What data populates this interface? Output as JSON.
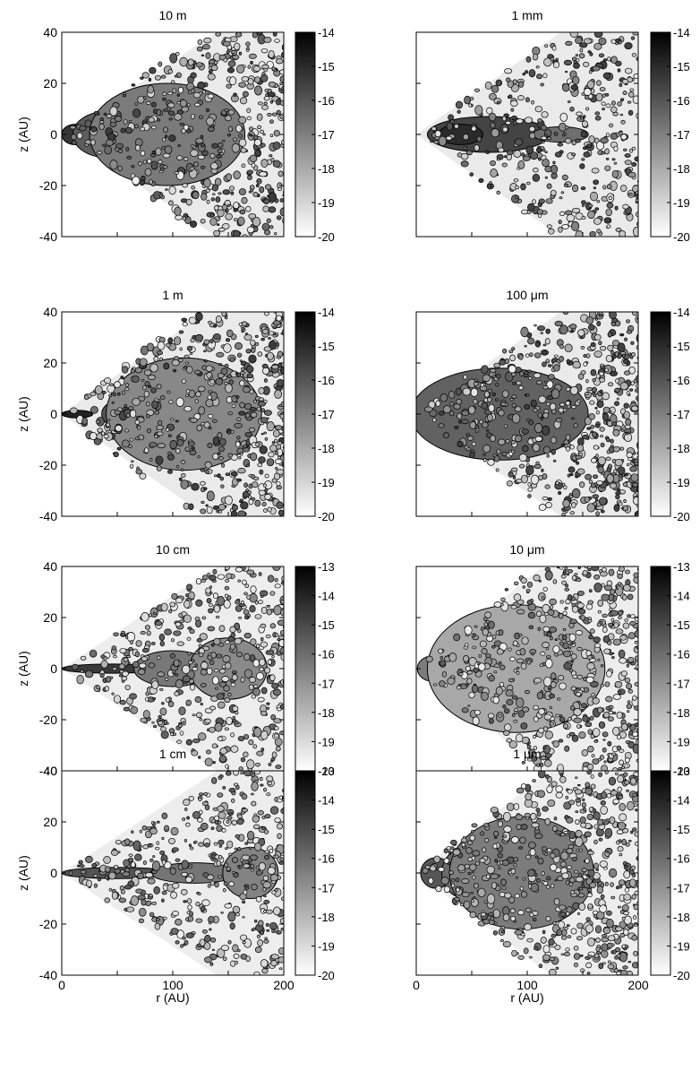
{
  "chart_data": [
    {
      "type": "heatmap",
      "title": "10 m",
      "ylabel": "z (AU)",
      "xlabel": "",
      "xlim": [
        0,
        200
      ],
      "ylim": [
        -40,
        40
      ],
      "x_ticks": [],
      "y_ticks": [
        40,
        20,
        0,
        -20,
        -40
      ],
      "colorbar": {
        "ticks": [
          -14,
          -15,
          -16,
          -17,
          -18,
          -19,
          -20
        ],
        "range": [
          -20,
          -14
        ]
      },
      "morphology": {
        "opening_half_angle_deg": 14,
        "spread": 1.0,
        "scatter_count": 520,
        "core": [
          {
            "x": 12,
            "w": 12,
            "h": 4,
            "level": -15.3
          },
          {
            "x": 40,
            "w": 30,
            "h": 9,
            "level": -16.2
          },
          {
            "x": 95,
            "w": 70,
            "h": 20,
            "level": -16.9
          }
        ]
      }
    },
    {
      "type": "heatmap",
      "title": "1 mm",
      "ylabel": "",
      "xlabel": "",
      "xlim": [
        0,
        200
      ],
      "ylim": [
        -40,
        40
      ],
      "x_ticks": [],
      "y_ticks": [],
      "colorbar": {
        "ticks": [
          -14,
          -15,
          -16,
          -17,
          -18,
          -19,
          -20
        ],
        "range": [
          -20,
          -14
        ]
      },
      "morphology": {
        "opening_half_angle_deg": 15,
        "spread": 0.95,
        "scatter_count": 420,
        "core": [
          {
            "x": 65,
            "w": 55,
            "h": 7,
            "level": -15.6
          },
          {
            "x": 40,
            "w": 20,
            "h": 4,
            "level": -15.0
          },
          {
            "x": 130,
            "w": 25,
            "h": 3,
            "level": -16.6
          }
        ]
      }
    },
    {
      "type": "heatmap",
      "title": "1 m",
      "ylabel": "z (AU)",
      "xlabel": "",
      "xlim": [
        0,
        200
      ],
      "ylim": [
        -40,
        40
      ],
      "x_ticks": [],
      "y_ticks": [
        40,
        20,
        0,
        -20,
        -40
      ],
      "colorbar": {
        "ticks": [
          -14,
          -15,
          -16,
          -17,
          -18,
          -19,
          -20
        ],
        "range": [
          -20,
          -14
        ]
      },
      "morphology": {
        "opening_half_angle_deg": 15,
        "spread": 1.0,
        "scatter_count": 560,
        "core": [
          {
            "x": 14,
            "w": 14,
            "h": 1.5,
            "level": -14.8
          },
          {
            "x": 50,
            "w": 14,
            "h": 5,
            "level": -16.0
          },
          {
            "x": 110,
            "w": 70,
            "h": 22,
            "level": -17.2
          }
        ]
      }
    },
    {
      "type": "heatmap",
      "title": "100 μm",
      "ylabel": "",
      "xlabel": "",
      "xlim": [
        0,
        200
      ],
      "ylim": [
        -40,
        40
      ],
      "x_ticks": [],
      "y_ticks": [],
      "colorbar": {
        "ticks": [
          -14,
          -15,
          -16,
          -17,
          -18,
          -19,
          -20
        ],
        "range": [
          -20,
          -14
        ]
      },
      "morphology": {
        "opening_half_angle_deg": 15,
        "spread": 1.0,
        "scatter_count": 620,
        "core": [
          {
            "x": 15,
            "w": 12,
            "h": 5,
            "level": -15.2
          },
          {
            "x": 75,
            "w": 80,
            "h": 18,
            "level": -16.3
          }
        ]
      }
    },
    {
      "type": "heatmap",
      "title": "10 cm",
      "ylabel": "z (AU)",
      "xlabel": "",
      "xlim": [
        0,
        200
      ],
      "ylim": [
        -40,
        40
      ],
      "x_ticks": [],
      "y_ticks": [
        40,
        20,
        0,
        -20,
        -40
      ],
      "colorbar": {
        "ticks": [
          -13,
          -14,
          -15,
          -16,
          -17,
          -18,
          -19,
          -20
        ],
        "range": [
          -20,
          -13
        ]
      },
      "morphology": {
        "opening_half_angle_deg": 14,
        "spread": 0.9,
        "scatter_count": 480,
        "core": [
          {
            "x": 45,
            "w": 45,
            "h": 1.8,
            "level": -14.6
          },
          {
            "x": 100,
            "w": 35,
            "h": 7,
            "level": -16.3
          },
          {
            "x": 150,
            "w": 35,
            "h": 12,
            "level": -16.8
          }
        ]
      }
    },
    {
      "type": "heatmap",
      "title": "10 μm",
      "ylabel": "",
      "xlabel": "",
      "xlim": [
        0,
        200
      ],
      "ylim": [
        -40,
        40
      ],
      "x_ticks": [],
      "y_ticks": [],
      "colorbar": {
        "ticks": [
          -13,
          -14,
          -15,
          -16,
          -17,
          -18,
          -19,
          -20
        ],
        "range": [
          -20,
          -13
        ]
      },
      "morphology": {
        "opening_half_angle_deg": 17,
        "spread": 1.0,
        "scatter_count": 600,
        "core": [
          {
            "x": 15,
            "w": 14,
            "h": 5,
            "level": -16.4
          },
          {
            "x": 90,
            "w": 80,
            "h": 25,
            "level": -17.6
          }
        ]
      }
    },
    {
      "type": "heatmap",
      "title": "1 cm",
      "ylabel": "z (AU)",
      "xlabel": "r (AU)",
      "xlim": [
        0,
        200
      ],
      "ylim": [
        -40,
        40
      ],
      "x_ticks": [
        0,
        100,
        200
      ],
      "y_ticks": [
        40,
        20,
        0,
        -20,
        -40
      ],
      "colorbar": {
        "ticks": [
          -13,
          -14,
          -15,
          -16,
          -17,
          -18,
          -19,
          -20
        ],
        "range": [
          -20,
          -13
        ]
      },
      "morphology": {
        "opening_half_angle_deg": 14,
        "spread": 0.85,
        "scatter_count": 460,
        "core": [
          {
            "x": 50,
            "w": 50,
            "h": 2.2,
            "level": -15.3
          },
          {
            "x": 120,
            "w": 40,
            "h": 4,
            "level": -16.2
          },
          {
            "x": 170,
            "w": 25,
            "h": 10,
            "level": -16.6
          }
        ]
      }
    },
    {
      "type": "heatmap",
      "title": "1 μm",
      "ylabel": "",
      "xlabel": "r (AU)",
      "xlim": [
        0,
        200
      ],
      "ylim": [
        -40,
        40
      ],
      "x_ticks": [
        0,
        100,
        200
      ],
      "y_ticks": [],
      "colorbar": {
        "ticks": [
          -13,
          -14,
          -15,
          -16,
          -17,
          -18,
          -19,
          -20
        ],
        "range": [
          -20,
          -13
        ]
      },
      "morphology": {
        "opening_half_angle_deg": 16,
        "spread": 1.0,
        "scatter_count": 620,
        "core": [
          {
            "x": 18,
            "w": 14,
            "h": 6,
            "level": -15.4
          },
          {
            "x": 45,
            "w": 22,
            "h": 10,
            "level": -15.9
          },
          {
            "x": 95,
            "w": 65,
            "h": 22,
            "level": -16.4
          }
        ]
      }
    }
  ]
}
